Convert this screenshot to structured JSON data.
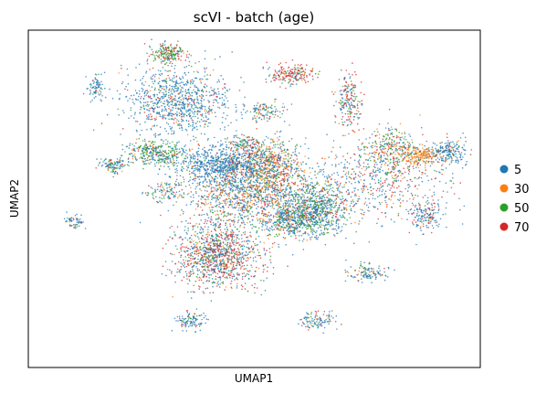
{
  "chart_data": {
    "type": "scatter",
    "title": "scVI - batch (age)",
    "xlabel": "UMAP1",
    "ylabel": "UMAP2",
    "ticks": "none",
    "grid": false,
    "legend": {
      "placement": "right",
      "entries": [
        {
          "label": "5",
          "color": "#1f77b4"
        },
        {
          "label": "30",
          "color": "#ff7f0e"
        },
        {
          "label": "50",
          "color": "#2ca02c"
        },
        {
          "label": "70",
          "color": "#d62728"
        }
      ]
    },
    "xlim": [
      0,
      100
    ],
    "ylim": [
      0,
      100
    ],
    "clusters": [
      {
        "x": 48,
        "y": 52,
        "sx": 7,
        "sy": 6,
        "n": 1400,
        "mix": [
          0.5,
          0.2,
          0.15,
          0.15
        ]
      },
      {
        "x": 43,
        "y": 60,
        "sx": 5,
        "sy": 3,
        "n": 700,
        "mix": [
          0.9,
          0.03,
          0.04,
          0.03
        ]
      },
      {
        "x": 54,
        "y": 60,
        "sx": 3,
        "sy": 4,
        "n": 500,
        "mix": [
          0.3,
          0.4,
          0.15,
          0.15
        ]
      },
      {
        "x": 63,
        "y": 47,
        "sx": 4,
        "sy": 4,
        "n": 800,
        "mix": [
          0.55,
          0.05,
          0.3,
          0.1
        ]
      },
      {
        "x": 42,
        "y": 33,
        "sx": 4.5,
        "sy": 4.5,
        "n": 1100,
        "mix": [
          0.4,
          0.1,
          0.15,
          0.35
        ]
      },
      {
        "x": 58,
        "y": 43,
        "sx": 3,
        "sy": 2,
        "n": 300,
        "mix": [
          0.5,
          0.1,
          0.3,
          0.1
        ]
      },
      {
        "x": 33,
        "y": 79,
        "sx": 6,
        "sy": 5,
        "n": 900,
        "mix": [
          0.75,
          0.05,
          0.1,
          0.1
        ]
      },
      {
        "x": 30,
        "y": 63,
        "sx": 2.5,
        "sy": 2,
        "n": 250,
        "mix": [
          0.5,
          0.05,
          0.4,
          0.05
        ]
      },
      {
        "x": 31,
        "y": 93,
        "sx": 1.8,
        "sy": 1.5,
        "n": 200,
        "mix": [
          0.2,
          0.05,
          0.45,
          0.3
        ]
      },
      {
        "x": 58,
        "y": 87,
        "sx": 2.5,
        "sy": 1.5,
        "n": 200,
        "mix": [
          0.2,
          0.05,
          0.2,
          0.55
        ]
      },
      {
        "x": 71,
        "y": 79,
        "sx": 1.5,
        "sy": 4,
        "n": 200,
        "mix": [
          0.4,
          0.05,
          0.15,
          0.4
        ]
      },
      {
        "x": 80,
        "y": 65,
        "sx": 3,
        "sy": 3,
        "n": 300,
        "mix": [
          0.3,
          0.25,
          0.35,
          0.1
        ]
      },
      {
        "x": 87,
        "y": 63,
        "sx": 2,
        "sy": 1.2,
        "n": 200,
        "mix": [
          0.1,
          0.8,
          0.05,
          0.05
        ]
      },
      {
        "x": 93,
        "y": 64,
        "sx": 2,
        "sy": 2,
        "n": 200,
        "mix": [
          0.8,
          0.05,
          0.1,
          0.05
        ]
      },
      {
        "x": 77,
        "y": 55,
        "sx": 8,
        "sy": 6,
        "n": 600,
        "mix": [
          0.5,
          0.1,
          0.1,
          0.3
        ]
      },
      {
        "x": 88,
        "y": 45,
        "sx": 2,
        "sy": 2,
        "n": 150,
        "mix": [
          0.7,
          0.05,
          0.05,
          0.2
        ]
      },
      {
        "x": 75,
        "y": 28,
        "sx": 2,
        "sy": 1.2,
        "n": 120,
        "mix": [
          0.6,
          0.1,
          0.2,
          0.1
        ]
      },
      {
        "x": 19,
        "y": 60,
        "sx": 1.5,
        "sy": 1.2,
        "n": 120,
        "mix": [
          0.6,
          0.1,
          0.2,
          0.1
        ]
      },
      {
        "x": 15,
        "y": 83,
        "sx": 1,
        "sy": 2,
        "n": 80,
        "mix": [
          0.8,
          0.05,
          0.1,
          0.05
        ]
      },
      {
        "x": 25,
        "y": 64,
        "sx": 2,
        "sy": 1.5,
        "n": 120,
        "mix": [
          0.4,
          0.1,
          0.4,
          0.1
        ]
      },
      {
        "x": 36,
        "y": 14,
        "sx": 1.8,
        "sy": 1.5,
        "n": 110,
        "mix": [
          0.7,
          0.05,
          0.15,
          0.1
        ]
      },
      {
        "x": 64,
        "y": 14,
        "sx": 1.8,
        "sy": 1.5,
        "n": 110,
        "mix": [
          0.6,
          0.05,
          0.15,
          0.2
        ]
      },
      {
        "x": 48,
        "y": 66,
        "sx": 2,
        "sy": 1.5,
        "n": 120,
        "mix": [
          0.3,
          0.1,
          0.3,
          0.3
        ]
      },
      {
        "x": 10,
        "y": 43,
        "sx": 1.2,
        "sy": 1,
        "n": 60,
        "mix": [
          0.7,
          0.05,
          0.15,
          0.1
        ]
      },
      {
        "x": 30,
        "y": 52,
        "sx": 2,
        "sy": 1.5,
        "n": 100,
        "mix": [
          0.6,
          0.05,
          0.25,
          0.1
        ]
      },
      {
        "x": 52,
        "y": 76,
        "sx": 2.5,
        "sy": 1.5,
        "n": 120,
        "mix": [
          0.5,
          0.1,
          0.2,
          0.2
        ]
      }
    ]
  }
}
